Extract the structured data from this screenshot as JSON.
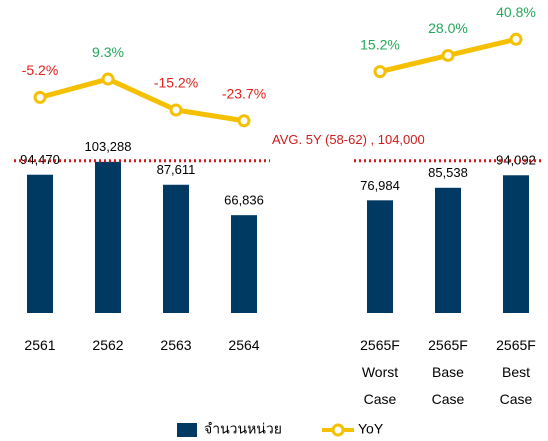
{
  "chart_data": {
    "type": "bar-line",
    "categories": [
      "2561",
      "2562",
      "2563",
      "2564",
      null,
      "2565F\nWorst\nCase",
      "2565F\nBase\nCase",
      "2565F\nBest\nCase"
    ],
    "series": [
      {
        "name": "จำนวนหน่วย",
        "type": "bar",
        "color": "#003a63",
        "values": [
          94470,
          103288,
          87611,
          66836,
          null,
          76984,
          85538,
          94092
        ],
        "value_labels": [
          "94,470",
          "103,288",
          "87,611",
          "66,836",
          null,
          "76,984",
          "85,538",
          "94,092"
        ]
      },
      {
        "name": "YoY",
        "type": "line",
        "axis": "y2",
        "color": "#f5c000",
        "positive_color": "#22a95a",
        "negative_color": "#e0201c",
        "values": [
          -5.2,
          9.3,
          -15.2,
          -23.7,
          null,
          15.2,
          28.0,
          40.8
        ],
        "value_labels": [
          "-5.2%",
          "9.3%",
          "-15.2%",
          "-23.7%",
          null,
          "15.2%",
          "28.0%",
          "40.8%"
        ]
      }
    ],
    "reference_line": {
      "value": 104000,
      "label": "AVG. 5Y (58-62) ,  104,000",
      "color": "#d11a1a"
    },
    "ylim": [
      0,
      207000
    ],
    "y2lim": [
      -176,
      64
    ],
    "legend": "bottom"
  }
}
